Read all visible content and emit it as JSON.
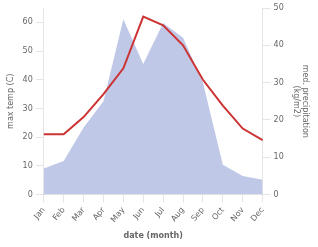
{
  "chart_data": {
    "type": "line",
    "categories": [
      "Jan",
      "Feb",
      "Mar",
      "Apr",
      "May",
      "Jun",
      "Jul",
      "Aug",
      "Sep",
      "Oct",
      "Nov",
      "Dec"
    ],
    "series": [
      {
        "type": "area",
        "axis": "y2",
        "color": "#c0c8e8",
        "values": [
          7,
          9,
          18,
          25,
          47,
          35,
          46,
          42,
          30,
          8,
          5,
          4
        ]
      },
      {
        "type": "line",
        "color": "#cc3333",
        "values": [
          21,
          21,
          27,
          35,
          44,
          62,
          59,
          52,
          40,
          31,
          23,
          19
        ]
      }
    ],
    "xlabel": "date (month)",
    "ylabel": "max temp (C)",
    "y2label": "med. precipitation\n(kg/m2)",
    "ylim": [
      0,
      65
    ],
    "yticks": [
      0,
      10,
      20,
      30,
      40,
      50,
      60
    ],
    "y2lim": [
      0,
      50
    ],
    "y2ticks": [
      0,
      10,
      20,
      30,
      40,
      50
    ],
    "grid": false
  }
}
